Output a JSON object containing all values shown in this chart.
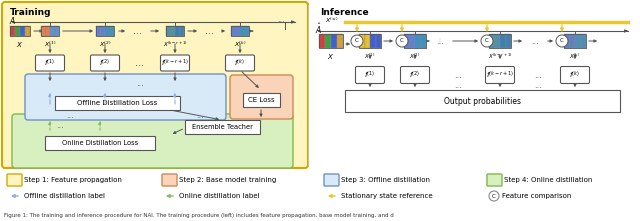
{
  "fig_width": 6.4,
  "fig_height": 2.21,
  "dpi": 100,
  "bg_color": "#ffffff",
  "train_bg_color": "#fef5c0",
  "train_edge_color": "#d4a800",
  "offline_bg_color": "#d8eaf8",
  "offline_edge_color": "#7090c8",
  "ce_bg_color": "#fad4b8",
  "ce_edge_color": "#d08858",
  "online_bg_color": "#d8f0c0",
  "online_edge_color": "#80b850",
  "box_bg": "#ffffff",
  "box_edge": "#555555",
  "arrow_color": "#555555",
  "blue_arrow": "#90b0e0",
  "green_arrow": "#80c060",
  "yellow_arrow": "#e8c830",
  "legend_row1": [
    {
      "label": "Step 1: Feature propagation",
      "fc": "#fef5c0",
      "ec": "#d4a800"
    },
    {
      "label": "Step 2: Base model training",
      "fc": "#fad4b8",
      "ec": "#d08858"
    },
    {
      "label": "Step 3: Offline distillation",
      "fc": "#d8eaf8",
      "ec": "#7090c8"
    },
    {
      "label": "Step 4: Online distillation",
      "fc": "#d8f0c0",
      "ec": "#80b850"
    }
  ],
  "legend_row2": [
    {
      "label": "Offline distillation label",
      "color": "#90b0e0",
      "type": "arrow"
    },
    {
      "label": "Online distillation label",
      "color": "#80c060",
      "type": "arrow"
    },
    {
      "label": "Stationary state reference",
      "color": "#e8c830",
      "type": "arrow"
    },
    {
      "label": "Feature comparison",
      "color": "#888888",
      "type": "circle"
    }
  ],
  "caption": "Figure 1: The training and inference procedure for NAI. The training procedure (left) includes feature propagation, base model training, and d"
}
